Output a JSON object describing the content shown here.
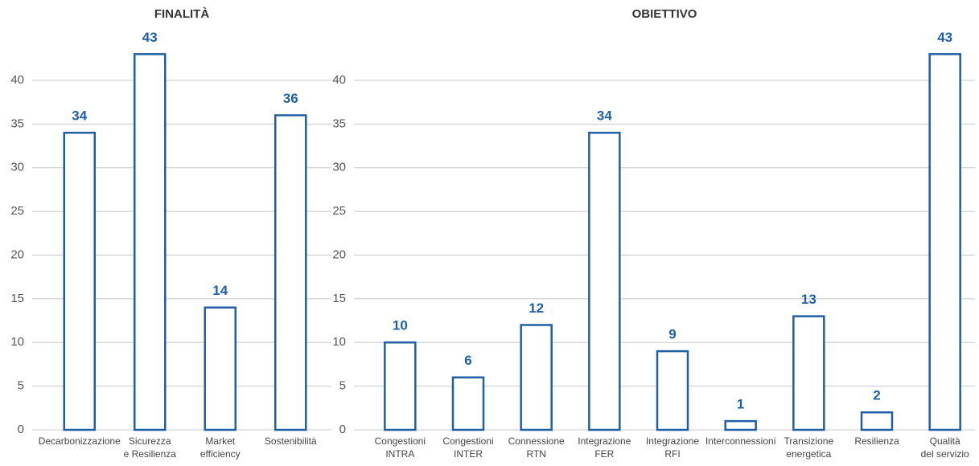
{
  "chart_data": [
    {
      "type": "bar",
      "title": "FINALITÀ",
      "categories": [
        [
          "Decarbonizzazione"
        ],
        [
          "Sicurezza",
          "e Resilienza"
        ],
        [
          "Market",
          "efficiency"
        ],
        [
          "Sostenibilità"
        ]
      ],
      "values": [
        34,
        43,
        14,
        36
      ],
      "color": "#1f5fa6",
      "ylim": [
        0,
        45
      ],
      "yticks": [
        0,
        5,
        10,
        15,
        20,
        25,
        30,
        35,
        40
      ],
      "grid": true
    },
    {
      "type": "bar",
      "title": "OBIETTIVO",
      "categories": [
        [
          "Congestioni",
          "INTRA"
        ],
        [
          "Congestioni",
          "INTER"
        ],
        [
          "Connessione",
          "RTN"
        ],
        [
          "Integrazione",
          "FER"
        ],
        [
          "Integrazione",
          "RFI"
        ],
        [
          "Interconnessioni"
        ],
        [
          "Transizione",
          "energetica"
        ],
        [
          "Resilienza"
        ],
        [
          "Qualità",
          "del servizio"
        ]
      ],
      "values": [
        10,
        6,
        12,
        34,
        9,
        1,
        13,
        2,
        43
      ],
      "color": "#1f5fa6",
      "ylim": [
        0,
        45
      ],
      "yticks": [
        0,
        5,
        10,
        15,
        20,
        25,
        30,
        35,
        40
      ],
      "grid": true
    }
  ]
}
